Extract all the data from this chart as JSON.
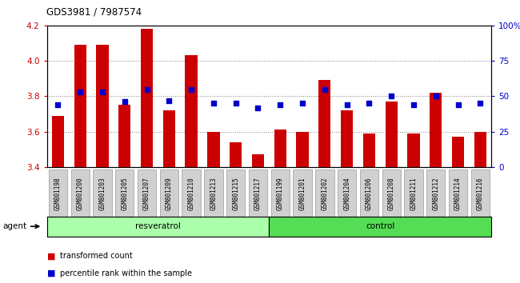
{
  "title": "GDS3981 / 7987574",
  "samples": [
    "GSM801198",
    "GSM801200",
    "GSM801203",
    "GSM801205",
    "GSM801207",
    "GSM801209",
    "GSM801210",
    "GSM801213",
    "GSM801215",
    "GSM801217",
    "GSM801199",
    "GSM801201",
    "GSM801202",
    "GSM801204",
    "GSM801206",
    "GSM801208",
    "GSM801211",
    "GSM801212",
    "GSM801214",
    "GSM801216"
  ],
  "bar_values": [
    3.69,
    4.09,
    4.09,
    3.75,
    4.18,
    3.72,
    4.03,
    3.6,
    3.54,
    3.47,
    3.61,
    3.6,
    3.89,
    3.72,
    3.59,
    3.77,
    3.59,
    3.82,
    3.57,
    3.6
  ],
  "dot_values": [
    44,
    53,
    53,
    46,
    55,
    47,
    55,
    45,
    45,
    42,
    44,
    45,
    55,
    44,
    45,
    50,
    44,
    50,
    44,
    45
  ],
  "resveratrol_count": 10,
  "control_count": 10,
  "ylim_left": [
    3.4,
    4.2
  ],
  "ylim_right": [
    0,
    100
  ],
  "yticks_left": [
    3.4,
    3.6,
    3.8,
    4.0,
    4.2
  ],
  "yticks_right": [
    0,
    25,
    50,
    75,
    100
  ],
  "bar_color": "#cc0000",
  "dot_color": "#0000cc",
  "bg_color_plot": "#ffffff",
  "resveratrol_color": "#aaffaa",
  "control_color": "#55dd55",
  "agent_label": "agent",
  "resveratrol_label": "resveratrol",
  "control_label": "control",
  "legend_bar": "transformed count",
  "legend_dot": "percentile rank within the sample",
  "title_color": "#000000",
  "left_axis_color": "#cc0000",
  "right_axis_color": "#0000cc"
}
